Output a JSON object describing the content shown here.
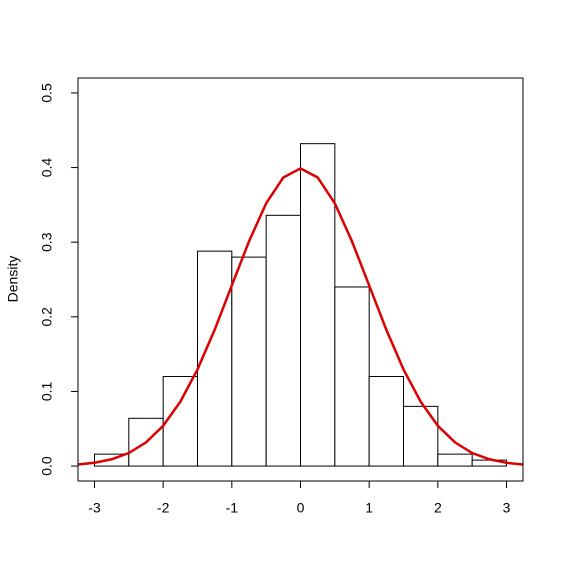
{
  "chart_data": {
    "type": "histogram",
    "ylabel": "Density",
    "bins": [
      -3,
      -2.5,
      -2,
      -1.5,
      -1,
      -0.5,
      0,
      0.5,
      1,
      1.5,
      2,
      2.5,
      3
    ],
    "values": [
      0.016,
      0.064,
      0.12,
      0.288,
      0.28,
      0.336,
      0.432,
      0.24,
      0.12,
      0.08,
      0.016,
      0.008
    ],
    "color": "#ffffff",
    "edgecolor": "#000000",
    "curve": {
      "color": "#dd0000",
      "x": [
        -3.25,
        -3,
        -2.75,
        -2.5,
        -2.25,
        -2,
        -1.75,
        -1.5,
        -1.25,
        -1,
        -0.75,
        -0.5,
        -0.25,
        0,
        0.25,
        0.5,
        0.75,
        1,
        1.25,
        1.5,
        1.75,
        2,
        2.25,
        2.5,
        2.75,
        3,
        3.25
      ],
      "values": [
        0.002,
        0.0044,
        0.0091,
        0.0175,
        0.0317,
        0.054,
        0.0863,
        0.1295,
        0.1826,
        0.242,
        0.3011,
        0.3521,
        0.3867,
        0.3989,
        0.3867,
        0.3521,
        0.3011,
        0.242,
        0.1826,
        0.1295,
        0.0863,
        0.054,
        0.0317,
        0.0175,
        0.0091,
        0.0044,
        0.002
      ]
    },
    "xlim": [
      -3.24,
      3.24
    ],
    "xticks": [
      -3,
      -2,
      -1,
      0,
      1,
      2,
      3
    ],
    "ylim": [
      -0.02,
      0.52
    ],
    "yticks": [
      {
        "value": 0,
        "label": "0.0"
      },
      0.1,
      0.2,
      0.3,
      0.4,
      0.5
    ]
  }
}
